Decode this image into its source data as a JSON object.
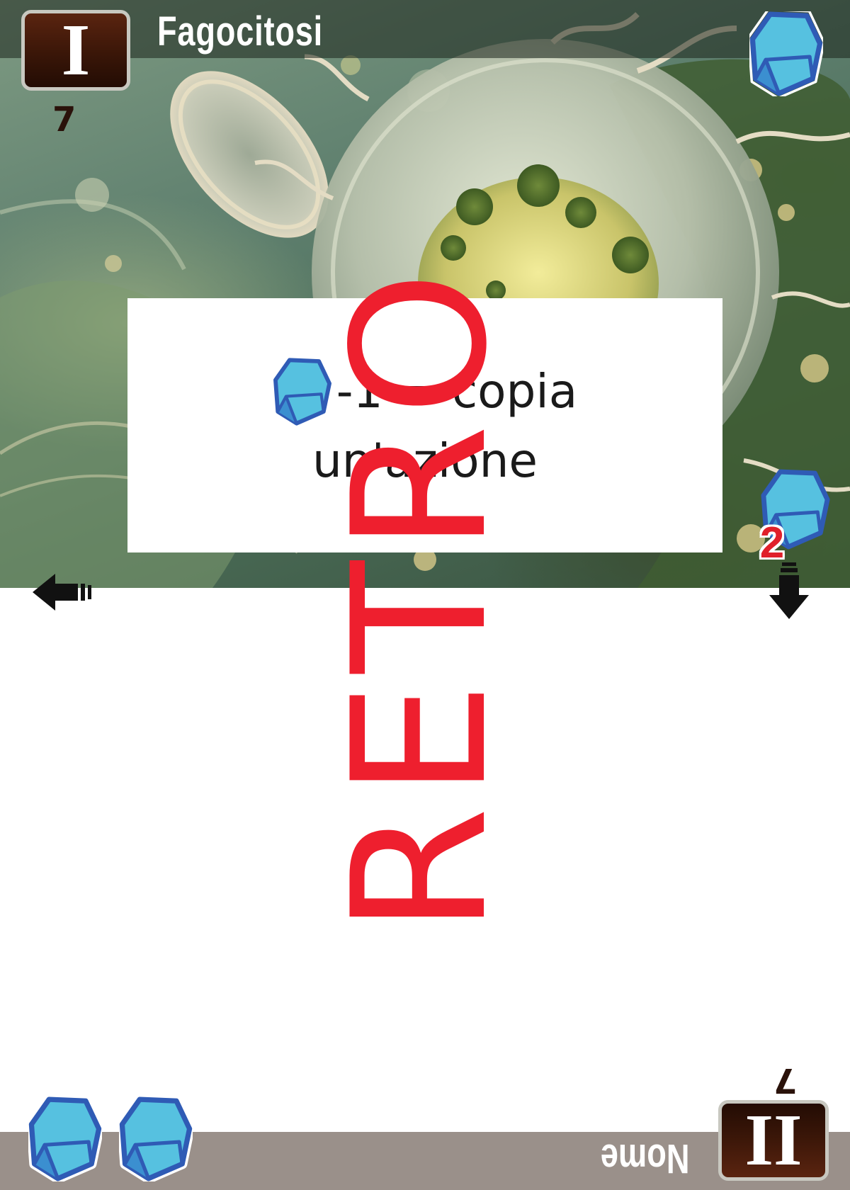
{
  "card": {
    "title": "Fagocitosi",
    "era_top": "I",
    "era_bottom": "II",
    "cost_top": "7",
    "cost_bottom": "7",
    "bottom_name": "Nome",
    "effect": {
      "line1": "-1 = copia",
      "line2": "un'azione"
    },
    "side_gem_count": "2",
    "watermark": "RETRO",
    "bottom_gems": 2
  },
  "icons": {
    "top_right": "gem-icon",
    "side": "gem-icon",
    "effect_inline": "gem-icon",
    "left_arrow": "arrow-left-icon",
    "right_arrow": "arrow-down-icon"
  },
  "colors": {
    "gem_fill": "#56c1e0",
    "gem_stroke": "#2f5bb5",
    "era_badge": "#3a1608",
    "watermark": "#ee1f2e",
    "title_bar": "#1c241c",
    "bottom_bar": "#9a908a"
  }
}
